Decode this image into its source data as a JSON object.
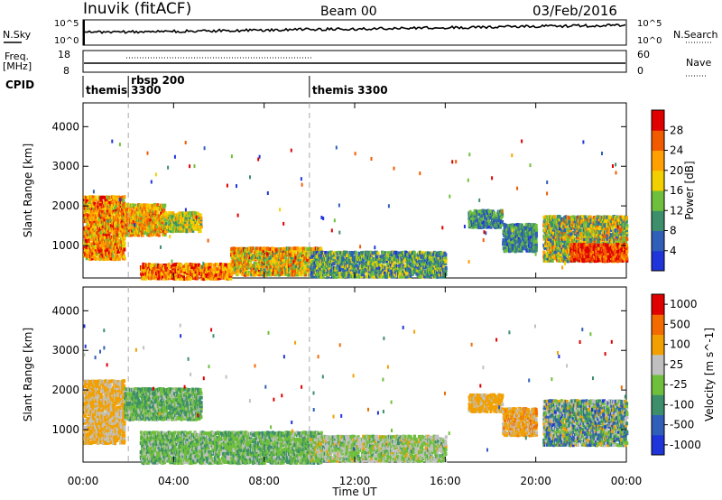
{
  "header": {
    "station": "Inuvik (fitACF)",
    "beam": "Beam 00",
    "date": "03/Feb/2016"
  },
  "param_panel": {
    "nsky_label": "N.Sky",
    "nsky_ticks": [
      "10^5",
      "10^0"
    ],
    "nsearch_label": "N.Search",
    "nsearch_ticks": [
      "10^5",
      "10^0"
    ],
    "freq_label": "Freq.",
    "freq_unit": "[MHz]",
    "freq_ticks": [
      "18",
      "8"
    ],
    "nave_label": "Nave",
    "nave_ticks": [
      "60",
      "0"
    ],
    "cpid_label": "CPID",
    "cpid_segments": [
      {
        "line1": "themis",
        "line2": "",
        "start": 0.0
      },
      {
        "line1": "rbsp 200",
        "line2": "3300",
        "start": 2.0
      },
      {
        "line1": "themis 3300",
        "line2": "",
        "start": 10.0
      }
    ]
  },
  "x_axis": {
    "label": "Time UT",
    "range_hours": [
      0,
      24
    ],
    "ticks": [
      {
        "h": 0,
        "label": "00:00"
      },
      {
        "h": 4,
        "label": "04:00"
      },
      {
        "h": 8,
        "label": "08:00"
      },
      {
        "h": 12,
        "label": "12:00"
      },
      {
        "h": 16,
        "label": "16:00"
      },
      {
        "h": 20,
        "label": "20:00"
      },
      {
        "h": 24,
        "label": "00:00"
      }
    ]
  },
  "chart_data": [
    {
      "type": "heatmap",
      "name": "power",
      "ylabel": "Slant Range [km]",
      "ylim": [
        180,
        4600
      ],
      "yticks": [
        "1000",
        "2000",
        "3000",
        "4000"
      ],
      "ytick_values": [
        1000,
        2000,
        3000,
        4000
      ],
      "colorbar_label": "Power [dB]",
      "colorbar_ticks": [
        "4",
        "8",
        "12",
        "16",
        "20",
        "24",
        "28"
      ],
      "colorbar_values": [
        4,
        8,
        12,
        16,
        20,
        24,
        28
      ],
      "colors": [
        "#1f35d9",
        "#2f5fb8",
        "#3c8f6a",
        "#6fbf3c",
        "#f2d000",
        "#ff9f00",
        "#f25a00",
        "#e00000"
      ],
      "regions": [
        {
          "t0": 0.0,
          "t1": 1.8,
          "r0": 700,
          "r1": 2300,
          "v0": 0.45,
          "v1": 0.95
        },
        {
          "t0": 1.8,
          "t1": 3.6,
          "r0": 1300,
          "r1": 2100,
          "v0": 0.4,
          "v1": 0.9
        },
        {
          "t0": 3.6,
          "t1": 5.2,
          "r0": 1400,
          "r1": 1900,
          "v0": 0.3,
          "v1": 0.7
        },
        {
          "t0": 2.5,
          "t1": 6.5,
          "r0": 200,
          "r1": 600,
          "v0": 0.5,
          "v1": 1.0
        },
        {
          "t0": 6.5,
          "t1": 10.5,
          "r0": 300,
          "r1": 1000,
          "v0": 0.3,
          "v1": 0.9
        },
        {
          "t0": 10.0,
          "t1": 16.0,
          "r0": 250,
          "r1": 900,
          "v0": 0.1,
          "v1": 0.6
        },
        {
          "t0": 17.0,
          "t1": 18.5,
          "r0": 1500,
          "r1": 1950,
          "v0": 0.1,
          "v1": 0.5
        },
        {
          "t0": 18.5,
          "t1": 20.0,
          "r0": 900,
          "r1": 1600,
          "v0": 0.1,
          "v1": 0.5
        },
        {
          "t0": 20.3,
          "t1": 24.0,
          "r0": 650,
          "r1": 1800,
          "v0": 0.15,
          "v1": 0.8
        },
        {
          "t0": 21.5,
          "t1": 24.0,
          "r0": 650,
          "r1": 1100,
          "v0": 0.7,
          "v1": 1.0
        }
      ]
    },
    {
      "type": "heatmap",
      "name": "velocity",
      "ylabel": "Slant Range [km]",
      "ylim": [
        180,
        4600
      ],
      "yticks": [
        "1000",
        "2000",
        "3000",
        "4000"
      ],
      "ytick_values": [
        1000,
        2000,
        3000,
        4000
      ],
      "colorbar_label": "Velocity [m s^-1]",
      "colorbar_ticks": [
        "1000",
        "500",
        "100",
        "25",
        "-25",
        "-100",
        "-500",
        "-1000"
      ],
      "colorbar_values": [
        1000,
        500,
        100,
        25,
        -25,
        -100,
        -500,
        -1000
      ],
      "colors": [
        "#1f35d9",
        "#2f5fb8",
        "#3c8f6a",
        "#6fbf3c",
        "#c0c0c0",
        "#f2a000",
        "#f26a00",
        "#e00000"
      ],
      "regions": [
        {
          "t0": 0.0,
          "t1": 1.8,
          "r0": 700,
          "r1": 2300,
          "v0": 0.55,
          "v1": 0.75
        },
        {
          "t0": 1.8,
          "t1": 5.2,
          "r0": 1300,
          "r1": 2100,
          "v0": 0.25,
          "v1": 0.55
        },
        {
          "t0": 2.5,
          "t1": 10.5,
          "r0": 200,
          "r1": 1000,
          "v0": 0.3,
          "v1": 0.55
        },
        {
          "t0": 10.0,
          "t1": 16.0,
          "r0": 250,
          "r1": 900,
          "v0": 0.35,
          "v1": 0.65
        },
        {
          "t0": 17.0,
          "t1": 18.5,
          "r0": 1500,
          "r1": 1950,
          "v0": 0.6,
          "v1": 0.75
        },
        {
          "t0": 18.5,
          "t1": 20.0,
          "r0": 900,
          "r1": 1600,
          "v0": 0.55,
          "v1": 0.8
        },
        {
          "t0": 20.3,
          "t1": 24.0,
          "r0": 650,
          "r1": 1800,
          "v0": 0.1,
          "v1": 0.7
        }
      ]
    }
  ]
}
